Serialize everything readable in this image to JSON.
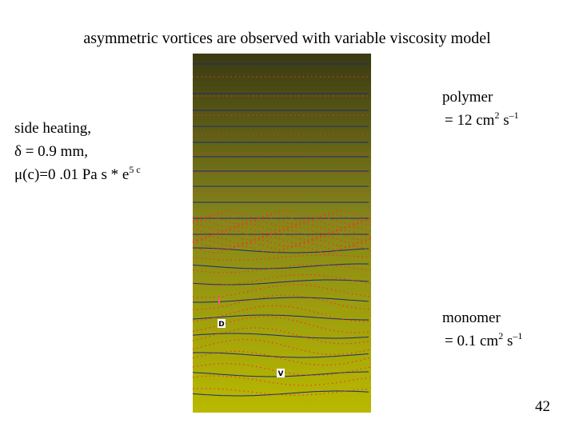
{
  "header": {
    "title": "asymmetric vortices are observed with variable viscosity model"
  },
  "left_text": {
    "line1": "side heating,",
    "line2": "δ = 0.9 mm,",
    "line3": {
      "base": "μ(c)=0 .01 Pa s * e",
      "sup": "5 c"
    }
  },
  "polymer": {
    "label": "polymer",
    "value": "= 12 cm",
    "exp1": "2",
    "unit2": " s",
    "exp2": "–1"
  },
  "monomer": {
    "label": "monomer",
    "value": "= 0.1 cm",
    "exp1": "2",
    "unit2": " s",
    "exp2": "–1"
  },
  "image_labels": {
    "d": "D",
    "v": "V"
  },
  "page_number": "42"
}
